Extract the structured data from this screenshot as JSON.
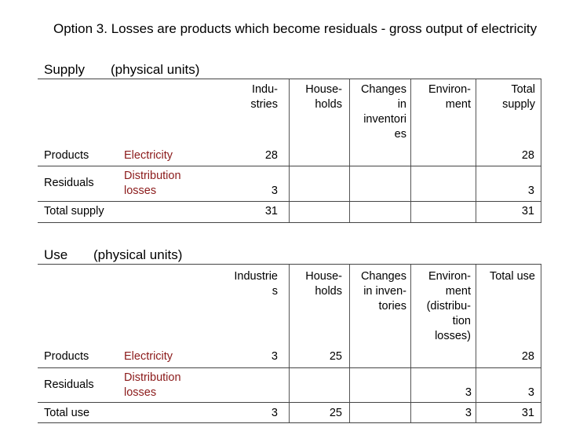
{
  "title": "Option 3. Losses are products which become residuals - gross output of electricity",
  "supply": {
    "label": "Supply",
    "units": "(physical units)",
    "headers": [
      "Indu-\nstries",
      "House-\nholds",
      "Changes\nin\ninventori\nes",
      "Environ-\nment",
      "Total\nsupply"
    ],
    "rows": [
      {
        "category": "Products",
        "item": "Electricity",
        "values": [
          "28",
          "",
          "",
          "",
          "28"
        ]
      },
      {
        "category": "Residuals",
        "item": "Distribution\nlosses",
        "values": [
          "3",
          "",
          "",
          "",
          "3"
        ]
      },
      {
        "category": "Total supply",
        "item": "",
        "values": [
          "31",
          "",
          "",
          "",
          "31"
        ]
      }
    ]
  },
  "use": {
    "label": "Use",
    "units": "(physical units)",
    "headers": [
      "Industrie\ns",
      "House-\nholds",
      "Changes\nin inven-\ntories",
      "Environ-\nment\n(distribu-\ntion\nlosses)",
      "Total use"
    ],
    "rows": [
      {
        "category": "Products",
        "item": "Electricity",
        "values": [
          "3",
          "25",
          "",
          "",
          "28"
        ]
      },
      {
        "category": "Residuals",
        "item": "Distribution\nlosses",
        "values": [
          "",
          "",
          "",
          "3",
          "3"
        ]
      },
      {
        "category": "Total use",
        "item": "",
        "values": [
          "3",
          "25",
          "",
          "3",
          "31"
        ]
      }
    ]
  }
}
